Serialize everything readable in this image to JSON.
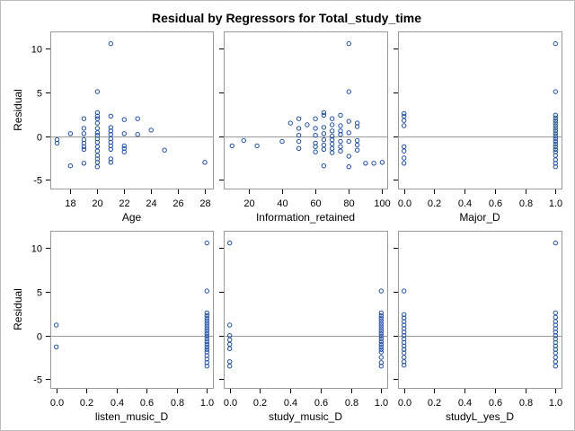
{
  "figure": {
    "title": "Residual by Regressors for Total_study_time"
  },
  "colors": {
    "marker": "#1f4e9c",
    "reference_line": "#9a9a9a",
    "panel_border": "#9a9a9a",
    "text": "#000000"
  },
  "chart_data": [
    {
      "type": "scatter",
      "xlabel": "Age",
      "ylabel": "Residual",
      "xlim": [
        16.5,
        28.6
      ],
      "ylim": [
        -6.0,
        12.0
      ],
      "xticks": [
        18,
        20,
        22,
        24,
        26,
        28
      ],
      "yticks": [
        -5,
        0,
        5,
        10
      ],
      "reference_y": 0,
      "points": [
        [
          17,
          -0.8
        ],
        [
          17,
          -0.4
        ],
        [
          18,
          0.3
        ],
        [
          18,
          -3.4
        ],
        [
          19,
          2.0
        ],
        [
          19,
          0.9
        ],
        [
          19,
          0.3
        ],
        [
          19,
          -0.4
        ],
        [
          19,
          -0.8
        ],
        [
          19,
          -1.2
        ],
        [
          19,
          -1.5
        ],
        [
          19,
          -3.1
        ],
        [
          20,
          5.1
        ],
        [
          20,
          2.7
        ],
        [
          20,
          2.3
        ],
        [
          20,
          2.0
        ],
        [
          20,
          1.5
        ],
        [
          20,
          0.9
        ],
        [
          20,
          0.4
        ],
        [
          20,
          0.1
        ],
        [
          20,
          -0.3
        ],
        [
          20,
          -0.7
        ],
        [
          20,
          -1.2
        ],
        [
          20,
          -1.7
        ],
        [
          20,
          -2.2
        ],
        [
          20,
          -2.6
        ],
        [
          20,
          -3.0
        ],
        [
          20,
          -3.5
        ],
        [
          21,
          10.6
        ],
        [
          21,
          2.3
        ],
        [
          21,
          1.0
        ],
        [
          21,
          0.6
        ],
        [
          21,
          0.2
        ],
        [
          21,
          -0.3
        ],
        [
          21,
          -0.7
        ],
        [
          21,
          -1.1
        ],
        [
          21,
          -1.5
        ],
        [
          21,
          -2.6
        ],
        [
          21,
          -3.0
        ],
        [
          22,
          1.9
        ],
        [
          22,
          0.3
        ],
        [
          22,
          -1.1
        ],
        [
          22,
          -1.4
        ],
        [
          22,
          -1.8
        ],
        [
          23,
          2.0
        ],
        [
          23,
          0.2
        ],
        [
          24,
          0.7
        ],
        [
          25,
          -1.6
        ],
        [
          28,
          -3.0
        ]
      ]
    },
    {
      "type": "scatter",
      "xlabel": "Information_retained",
      "ylabel": "",
      "xlim": [
        5,
        103
      ],
      "ylim": [
        -6.0,
        12.0
      ],
      "xticks": [
        20,
        40,
        60,
        80,
        100
      ],
      "yticks": [
        -5,
        0,
        5,
        10
      ],
      "reference_y": 0,
      "points": [
        [
          10,
          -1.1
        ],
        [
          17,
          -0.5
        ],
        [
          25,
          -1.1
        ],
        [
          40,
          -0.6
        ],
        [
          45,
          1.5
        ],
        [
          50,
          2.0
        ],
        [
          50,
          0.9
        ],
        [
          50,
          0.1
        ],
        [
          50,
          -0.6
        ],
        [
          50,
          -1.4
        ],
        [
          55,
          1.3
        ],
        [
          60,
          2.0
        ],
        [
          60,
          0.9
        ],
        [
          60,
          0.1
        ],
        [
          60,
          -0.8
        ],
        [
          60,
          -1.2
        ],
        [
          60,
          -1.8
        ],
        [
          65,
          2.7
        ],
        [
          65,
          2.4
        ],
        [
          65,
          1.0
        ],
        [
          65,
          0.3
        ],
        [
          65,
          -0.4
        ],
        [
          65,
          -1.0
        ],
        [
          65,
          -1.5
        ],
        [
          65,
          -3.4
        ],
        [
          70,
          2.0
        ],
        [
          70,
          1.3
        ],
        [
          70,
          0.6
        ],
        [
          70,
          0.0
        ],
        [
          70,
          -0.4
        ],
        [
          70,
          -0.9
        ],
        [
          70,
          -1.4
        ],
        [
          70,
          -1.9
        ],
        [
          75,
          2.4
        ],
        [
          75,
          1.2
        ],
        [
          75,
          0.6
        ],
        [
          75,
          0.2
        ],
        [
          75,
          -0.6
        ],
        [
          75,
          -1.2
        ],
        [
          75,
          -1.7
        ],
        [
          80,
          10.6
        ],
        [
          80,
          5.1
        ],
        [
          80,
          1.7
        ],
        [
          80,
          0.4
        ],
        [
          80,
          -0.6
        ],
        [
          80,
          -2.3
        ],
        [
          80,
          -3.5
        ],
        [
          85,
          1.5
        ],
        [
          85,
          1.1
        ],
        [
          85,
          -0.5
        ],
        [
          85,
          -1.0
        ],
        [
          85,
          -1.6
        ],
        [
          90,
          -3.1
        ],
        [
          95,
          -3.1
        ],
        [
          100,
          -3.0
        ]
      ]
    },
    {
      "type": "scatter",
      "xlabel": "Major_D",
      "ylabel": "",
      "xlim": [
        -0.04,
        1.04
      ],
      "ylim": [
        -6.0,
        12.0
      ],
      "xticks": [
        0.0,
        0.2,
        0.4,
        0.6,
        0.8,
        1.0
      ],
      "yticks": [
        -5,
        0,
        5,
        10
      ],
      "reference_y": 0,
      "points": [
        [
          0,
          2.6
        ],
        [
          0,
          2.3
        ],
        [
          0,
          1.8
        ],
        [
          0,
          1.2
        ],
        [
          0,
          -1.2
        ],
        [
          0,
          -1.7
        ],
        [
          0,
          -2.5
        ],
        [
          0,
          -3.1
        ],
        [
          1,
          10.6
        ],
        [
          1,
          5.1
        ],
        [
          1,
          2.4
        ],
        [
          1,
          2.1
        ],
        [
          1,
          1.8
        ],
        [
          1,
          1.5
        ],
        [
          1,
          1.2
        ],
        [
          1,
          0.9
        ],
        [
          1,
          0.6
        ],
        [
          1,
          0.3
        ],
        [
          1,
          0.0
        ],
        [
          1,
          -0.3
        ],
        [
          1,
          -0.6
        ],
        [
          1,
          -0.9
        ],
        [
          1,
          -1.2
        ],
        [
          1,
          -1.5
        ],
        [
          1,
          -1.8
        ],
        [
          1,
          -2.2
        ],
        [
          1,
          -2.7
        ],
        [
          1,
          -3.1
        ],
        [
          1,
          -3.5
        ]
      ]
    },
    {
      "type": "scatter",
      "xlabel": "listen_music_D",
      "ylabel": "Residual",
      "xlim": [
        -0.04,
        1.04
      ],
      "ylim": [
        -6.0,
        12.0
      ],
      "xticks": [
        0.0,
        0.2,
        0.4,
        0.6,
        0.8,
        1.0
      ],
      "yticks": [
        -5,
        0,
        5,
        10
      ],
      "reference_y": 0,
      "points": [
        [
          0,
          1.2
        ],
        [
          0,
          -1.3
        ],
        [
          1,
          10.6
        ],
        [
          1,
          5.1
        ],
        [
          1,
          2.6
        ],
        [
          1,
          2.3
        ],
        [
          1,
          2.0
        ],
        [
          1,
          1.7
        ],
        [
          1,
          1.4
        ],
        [
          1,
          1.1
        ],
        [
          1,
          0.8
        ],
        [
          1,
          0.5
        ],
        [
          1,
          0.2
        ],
        [
          1,
          -0.1
        ],
        [
          1,
          -0.4
        ],
        [
          1,
          -0.7
        ],
        [
          1,
          -1.0
        ],
        [
          1,
          -1.3
        ],
        [
          1,
          -1.6
        ],
        [
          1,
          -1.9
        ],
        [
          1,
          -2.3
        ],
        [
          1,
          -2.7
        ],
        [
          1,
          -3.1
        ],
        [
          1,
          -3.5
        ]
      ]
    },
    {
      "type": "scatter",
      "xlabel": "study_music_D",
      "ylabel": "",
      "xlim": [
        -0.04,
        1.04
      ],
      "ylim": [
        -6.0,
        12.0
      ],
      "xticks": [
        0.0,
        0.2,
        0.4,
        0.6,
        0.8,
        1.0
      ],
      "yticks": [
        -5,
        0,
        5,
        10
      ],
      "reference_y": 0,
      "points": [
        [
          0,
          10.6
        ],
        [
          0,
          1.2
        ],
        [
          0,
          0.0
        ],
        [
          0,
          -0.5
        ],
        [
          0,
          -1.0
        ],
        [
          0,
          -1.5
        ],
        [
          0,
          -3.0
        ],
        [
          0,
          -3.5
        ],
        [
          1,
          5.1
        ],
        [
          1,
          2.6
        ],
        [
          1,
          2.3
        ],
        [
          1,
          2.0
        ],
        [
          1,
          1.7
        ],
        [
          1,
          1.4
        ],
        [
          1,
          1.1
        ],
        [
          1,
          0.8
        ],
        [
          1,
          0.5
        ],
        [
          1,
          0.2
        ],
        [
          1,
          -0.1
        ],
        [
          1,
          -0.4
        ],
        [
          1,
          -0.7
        ],
        [
          1,
          -1.0
        ],
        [
          1,
          -1.3
        ],
        [
          1,
          -1.6
        ],
        [
          1,
          -1.9
        ],
        [
          1,
          -2.5
        ],
        [
          1,
          -3.1
        ],
        [
          1,
          -3.5
        ]
      ]
    },
    {
      "type": "scatter",
      "xlabel": "studyL_yes_D",
      "ylabel": "",
      "xlim": [
        -0.04,
        1.04
      ],
      "ylim": [
        -6.0,
        12.0
      ],
      "xticks": [
        0.0,
        0.2,
        0.4,
        0.6,
        0.8,
        1.0
      ],
      "yticks": [
        -5,
        0,
        5,
        10
      ],
      "reference_y": 0,
      "points": [
        [
          0,
          5.1
        ],
        [
          0,
          2.4
        ],
        [
          0,
          2.0
        ],
        [
          0,
          1.6
        ],
        [
          0,
          1.2
        ],
        [
          0,
          0.8
        ],
        [
          0,
          0.4
        ],
        [
          0,
          0.0
        ],
        [
          0,
          -0.4
        ],
        [
          0,
          -0.8
        ],
        [
          0,
          -1.2
        ],
        [
          0,
          -1.6
        ],
        [
          0,
          -2.0
        ],
        [
          0,
          -2.5
        ],
        [
          0,
          -3.0
        ],
        [
          0,
          -3.4
        ],
        [
          1,
          10.6
        ],
        [
          1,
          2.6
        ],
        [
          1,
          2.1
        ],
        [
          1,
          1.6
        ],
        [
          1,
          1.2
        ],
        [
          1,
          0.8
        ],
        [
          1,
          0.4
        ],
        [
          1,
          0.0
        ],
        [
          1,
          -0.4
        ],
        [
          1,
          -0.8
        ],
        [
          1,
          -1.2
        ],
        [
          1,
          -1.6
        ],
        [
          1,
          -2.0
        ],
        [
          1,
          -2.5
        ],
        [
          1,
          -3.0
        ],
        [
          1,
          -3.5
        ]
      ]
    }
  ]
}
